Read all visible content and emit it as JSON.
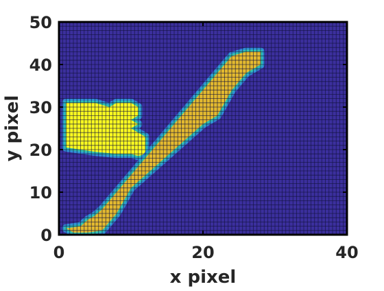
{
  "chart_data": {
    "type": "heatmap",
    "title": "",
    "xlabel": "x pixel",
    "ylabel": "y pixel",
    "xlim": [
      0,
      40
    ],
    "ylim": [
      0,
      50
    ],
    "xticks": [
      0,
      20,
      40
    ],
    "yticks": [
      0,
      10,
      20,
      30,
      40,
      50
    ],
    "xtick_labels": [
      "0",
      "20",
      "40"
    ],
    "ytick_labels": [
      "0",
      "10",
      "20",
      "30",
      "40",
      "50"
    ],
    "grid": "cell edges drawn (dark lines)",
    "colors": {
      "background": "#3b2f9d",
      "cell_edge": "#12123a",
      "edge_outer": "#2f8fd6",
      "edge_inner": "#2fbfb0",
      "diagonal_band": "#e3b92f",
      "left_blob": "#f9f920"
    },
    "regions": [
      {
        "name": "left blob",
        "value_level": "high",
        "color_key": "left_blob",
        "outline": [
          [
            1,
            31
          ],
          [
            5,
            31
          ],
          [
            6,
            30.5
          ],
          [
            7,
            30
          ],
          [
            8,
            31
          ],
          [
            10,
            31
          ],
          [
            11,
            30
          ],
          [
            11,
            28
          ],
          [
            10,
            27
          ],
          [
            11,
            26
          ],
          [
            10,
            25
          ],
          [
            11,
            24
          ],
          [
            12,
            23
          ],
          [
            12,
            21
          ],
          [
            12,
            19
          ],
          [
            11,
            18.5
          ],
          [
            10,
            19
          ],
          [
            8,
            19
          ],
          [
            5,
            19.5
          ],
          [
            3,
            20
          ],
          [
            1,
            20.5
          ]
        ]
      },
      {
        "name": "diagonal band",
        "value_level": "medium",
        "color_key": "diagonal_band",
        "outline": [
          [
            26,
            43
          ],
          [
            28,
            43
          ],
          [
            28,
            40
          ],
          [
            27,
            39
          ],
          [
            26,
            38
          ],
          [
            25,
            36
          ],
          [
            24,
            34
          ],
          [
            23,
            31
          ],
          [
            22,
            28
          ],
          [
            20,
            26
          ],
          [
            18,
            23
          ],
          [
            16,
            20
          ],
          [
            14,
            17
          ],
          [
            12,
            14
          ],
          [
            10,
            11
          ],
          [
            9,
            8
          ],
          [
            8,
            5
          ],
          [
            7,
            3
          ],
          [
            6,
            1
          ],
          [
            4,
            0.5
          ],
          [
            2,
            0.5
          ],
          [
            1,
            1.5
          ],
          [
            3,
            2
          ],
          [
            4,
            3.5
          ],
          [
            5,
            4.5
          ],
          [
            6,
            6
          ],
          [
            7,
            8
          ],
          [
            8,
            10
          ],
          [
            9,
            12
          ],
          [
            10,
            14
          ],
          [
            11,
            16
          ],
          [
            12,
            18
          ],
          [
            13,
            20
          ],
          [
            14,
            22
          ],
          [
            15,
            24
          ],
          [
            16,
            26
          ],
          [
            17,
            28
          ],
          [
            18,
            30
          ],
          [
            19,
            32
          ],
          [
            20,
            34
          ],
          [
            21,
            36
          ],
          [
            22,
            38
          ],
          [
            23,
            40
          ],
          [
            24,
            42
          ]
        ]
      }
    ]
  }
}
